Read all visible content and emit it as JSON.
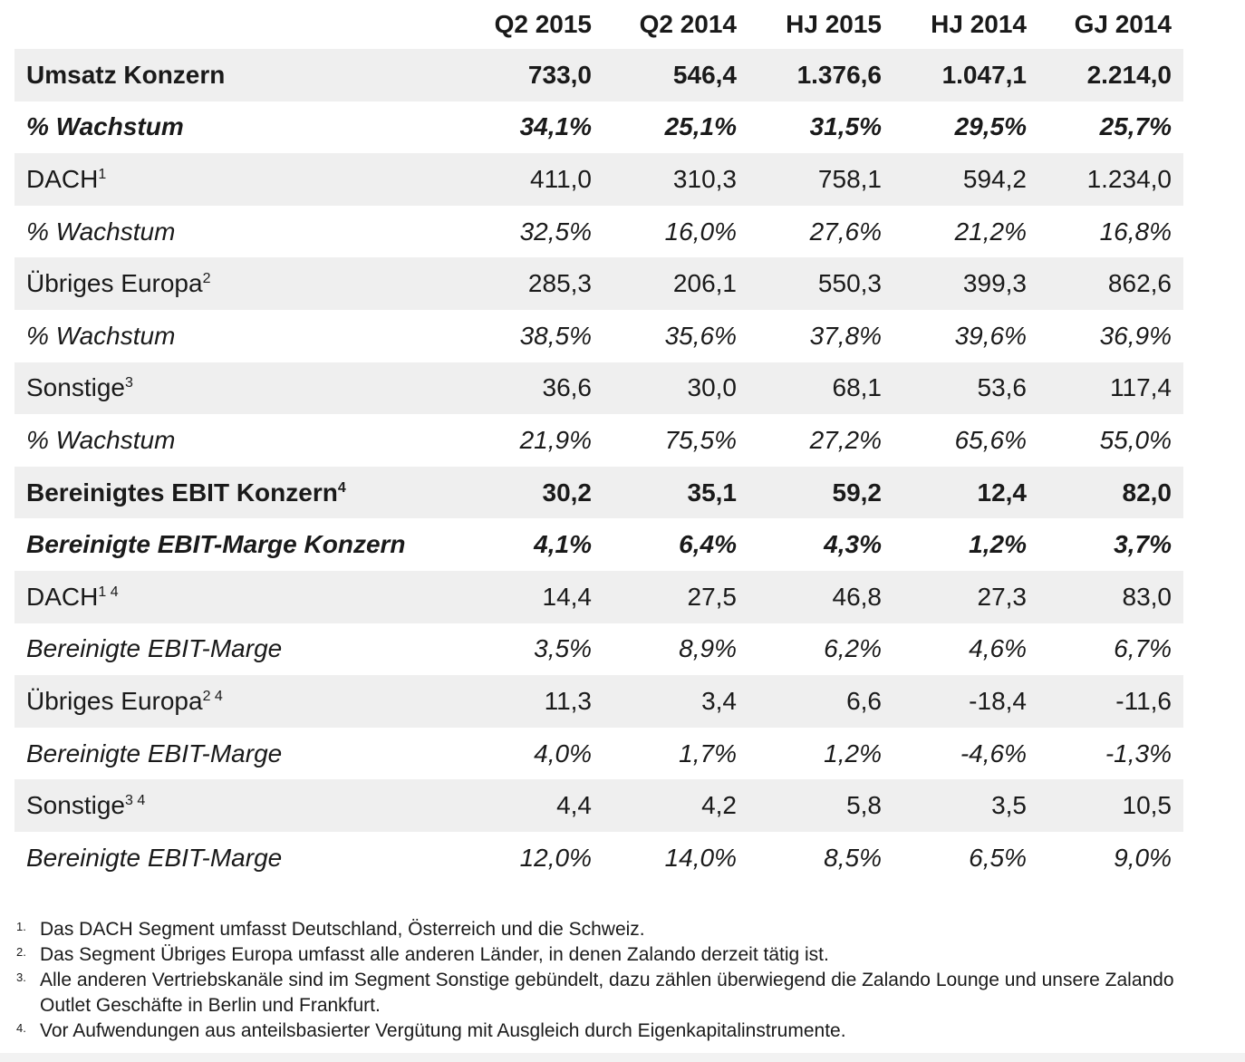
{
  "table": {
    "columns": [
      "",
      "Q2 2015",
      "Q2 2014",
      "HJ 2015",
      "HJ 2014",
      "GJ 2014"
    ],
    "rows": [
      {
        "label": "Umsatz Konzern",
        "sup": "",
        "style": "bold",
        "values": [
          "733,0",
          "546,4",
          "1.376,6",
          "1.047,1",
          "2.214,0"
        ]
      },
      {
        "label": "% Wachstum",
        "sup": "",
        "style": "bolditalic",
        "values": [
          "34,1%",
          "25,1%",
          "31,5%",
          "29,5%",
          "25,7%"
        ]
      },
      {
        "label": "DACH",
        "sup": "1",
        "style": "normal",
        "values": [
          "411,0",
          "310,3",
          "758,1",
          "594,2",
          "1.234,0"
        ]
      },
      {
        "label": "% Wachstum",
        "sup": "",
        "style": "italic",
        "values": [
          "32,5%",
          "16,0%",
          "27,6%",
          "21,2%",
          "16,8%"
        ]
      },
      {
        "label": "Übriges Europa",
        "sup": "2",
        "style": "normal",
        "values": [
          "285,3",
          "206,1",
          "550,3",
          "399,3",
          "862,6"
        ]
      },
      {
        "label": "% Wachstum",
        "sup": "",
        "style": "italic",
        "values": [
          "38,5%",
          "35,6%",
          "37,8%",
          "39,6%",
          "36,9%"
        ]
      },
      {
        "label": "Sonstige",
        "sup": "3",
        "style": "normal",
        "values": [
          "36,6",
          "30,0",
          "68,1",
          "53,6",
          "117,4"
        ]
      },
      {
        "label": "% Wachstum",
        "sup": "",
        "style": "italic",
        "values": [
          "21,9%",
          "75,5%",
          "27,2%",
          "65,6%",
          "55,0%"
        ]
      },
      {
        "label": "Bereinigtes EBIT Konzern",
        "sup": "4",
        "style": "bold",
        "values": [
          "30,2",
          "35,1",
          "59,2",
          "12,4",
          "82,0"
        ]
      },
      {
        "label": "Bereinigte EBIT-Marge Konzern",
        "sup": "",
        "style": "bolditalic",
        "values": [
          "4,1%",
          "6,4%",
          "4,3%",
          "1,2%",
          "3,7%"
        ]
      },
      {
        "label": "DACH",
        "sup": "1 4",
        "style": "normal",
        "values": [
          "14,4",
          "27,5",
          "46,8",
          "27,3",
          "83,0"
        ]
      },
      {
        "label": "Bereinigte EBIT-Marge",
        "sup": "",
        "style": "italic",
        "values": [
          "3,5%",
          "8,9%",
          "6,2%",
          "4,6%",
          "6,7%"
        ]
      },
      {
        "label": "Übriges Europa",
        "sup": "2 4",
        "style": "normal",
        "values": [
          "11,3",
          "3,4",
          "6,6",
          "-18,4",
          "-11,6"
        ]
      },
      {
        "label": "Bereinigte EBIT-Marge",
        "sup": "",
        "style": "italic",
        "values": [
          "4,0%",
          "1,7%",
          "1,2%",
          "-4,6%",
          "-1,3%"
        ]
      },
      {
        "label": "Sonstige",
        "sup": "3 4",
        "style": "normal",
        "values": [
          "4,4",
          "4,2",
          "5,8",
          "3,5",
          "10,5"
        ]
      },
      {
        "label": "Bereinigte EBIT-Marge",
        "sup": "",
        "style": "italic",
        "values": [
          "12,0%",
          "14,0%",
          "8,5%",
          "6,5%",
          "9,0%"
        ]
      }
    ]
  },
  "footnotes": [
    {
      "mark": "1.",
      "text": "Das DACH Segment umfasst Deutschland, Österreich und die Schweiz."
    },
    {
      "mark": "2.",
      "text": "Das Segment Übriges Europa umfasst alle anderen Länder, in denen Zalando derzeit tätig ist."
    },
    {
      "mark": "3.",
      "text": "Alle anderen Vertriebskanäle sind im Segment Sonstige gebündelt, dazu zählen überwiegend die Zalando Lounge und unsere Zalando Outlet Geschäfte in Berlin und Frankfurt."
    },
    {
      "mark": "4.",
      "text": "Vor Aufwendungen aus anteilsbasierter Vergütung mit Ausgleich durch Eigenkapitalinstrumente."
    }
  ]
}
